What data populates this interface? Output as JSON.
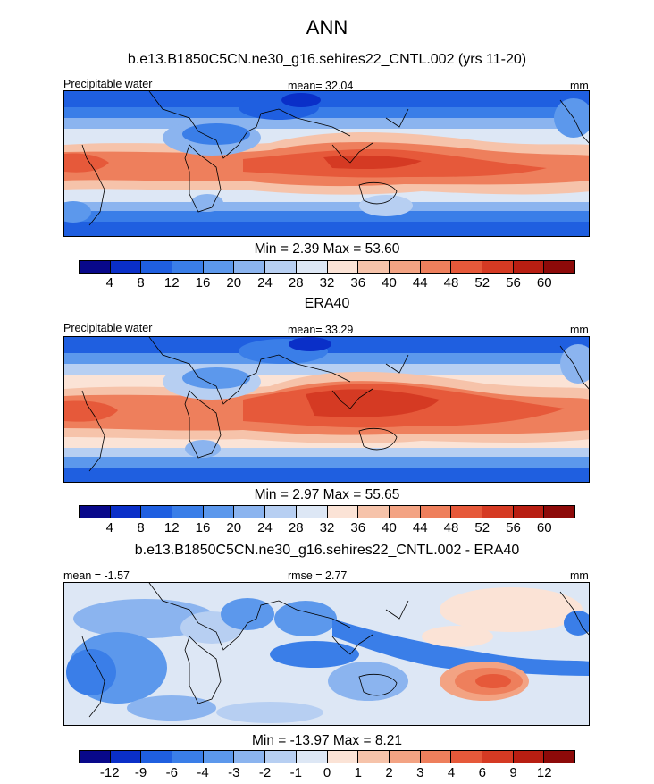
{
  "figure": {
    "season": "ANN"
  },
  "colors": {
    "abs_scale": [
      "#08088a",
      "#0a2fc8",
      "#1f5fe0",
      "#3a7ee8",
      "#5c98ec",
      "#8bb4ef",
      "#b7cff2",
      "#dde7f5",
      "#fbe3d6",
      "#f6c3aa",
      "#f3a383",
      "#ee7f5c",
      "#e6593a",
      "#d53a23",
      "#b81e12",
      "#8d0a09"
    ],
    "diff_scale": [
      "#08088a",
      "#0a2fc8",
      "#1f5fe0",
      "#3a7ee8",
      "#5c98ec",
      "#8bb4ef",
      "#b7cff2",
      "#dde7f5",
      "#fbe3d6",
      "#f6c3aa",
      "#f3a383",
      "#ee7f5c",
      "#e6593a",
      "#d53a23",
      "#b81e12",
      "#8d0a09"
    ]
  },
  "panels": [
    {
      "title": "b.e13.B1850C5CN.ne30_g16.sehires22_CNTL.002 (yrs 11-20)",
      "left_label": "Precipitable water",
      "center_label": "mean=  32.04",
      "right_label": "mm",
      "stats": "Min =   2.39 Max =  53.60",
      "colorbar_labels": [
        "4",
        "8",
        "12",
        "16",
        "20",
        "24",
        "28",
        "32",
        "36",
        "40",
        "44",
        "48",
        "52",
        "56",
        "60"
      ]
    },
    {
      "title": "ERA40",
      "left_label": "Precipitable water",
      "center_label": "mean=  33.29",
      "right_label": "mm",
      "stats": "Min =   2.97 Max =  55.65",
      "colorbar_labels": [
        "4",
        "8",
        "12",
        "16",
        "20",
        "24",
        "28",
        "32",
        "36",
        "40",
        "44",
        "48",
        "52",
        "56",
        "60"
      ]
    },
    {
      "title": "b.e13.B1850C5CN.ne30_g16.sehires22_CNTL.002 - ERA40",
      "left_label": "mean =  -1.57",
      "center_label": "rmse =   2.77",
      "right_label": "mm",
      "stats": "Min = -13.97 Max =   8.21",
      "colorbar_labels": [
        "-12",
        "-9",
        "-6",
        "-4",
        "-3",
        "-2",
        "-1",
        "0",
        "1",
        "2",
        "3",
        "4",
        "6",
        "9",
        "12"
      ]
    }
  ]
}
